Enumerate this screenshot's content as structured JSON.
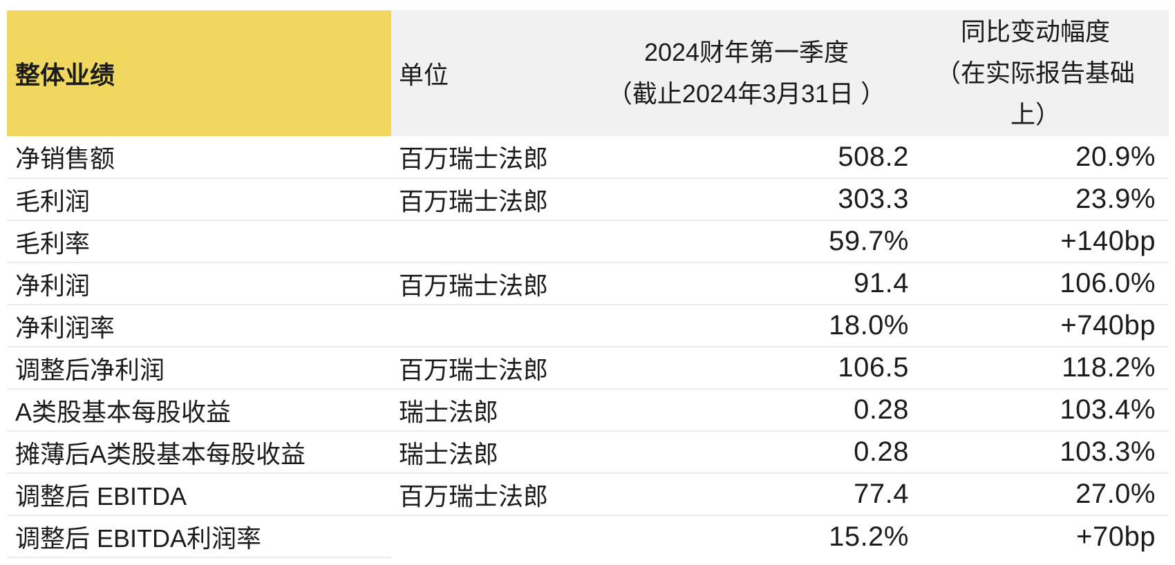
{
  "colors": {
    "accent": "#F0D75E",
    "header_bg": "#F1F1F1",
    "row_divider": "#ECECEC",
    "text": "#1B1B1B"
  },
  "table": {
    "header": {
      "col1": "整体业绩",
      "col2": "单位",
      "col3_lines": [
        "2024财年第一季度",
        "（截止2024年3月31日 ）"
      ],
      "col4_lines": [
        "同比变动幅度",
        "（在实际报告基础",
        "上）"
      ]
    },
    "rows": [
      {
        "metric": "净销售额",
        "unit": "百万瑞士法郎",
        "value": "508.2",
        "change": "20.9%"
      },
      {
        "metric": "毛利润",
        "unit": "百万瑞士法郎",
        "value": "303.3",
        "change": "23.9%"
      },
      {
        "metric": "毛利率",
        "unit": "",
        "value": "59.7%",
        "change": "+140bp"
      },
      {
        "metric": "净利润",
        "unit": "百万瑞士法郎",
        "value": "91.4",
        "change": "106.0%"
      },
      {
        "metric": "净利润率",
        "unit": "",
        "value": "18.0%",
        "change": "+740bp"
      },
      {
        "metric": "调整后净利润",
        "unit": "百万瑞士法郎",
        "value": "106.5",
        "change": "118.2%"
      },
      {
        "metric": "A类股基本每股收益",
        "unit": "瑞士法郎",
        "value": "0.28",
        "change": "103.4%"
      },
      {
        "metric": "摊薄后A类股基本每股收益",
        "unit": "瑞士法郎",
        "value": "0.28",
        "change": "103.3%"
      },
      {
        "metric": "调整后 EBITDA",
        "unit": "百万瑞士法郎",
        "value": "77.4",
        "change": "27.0%"
      },
      {
        "metric": "调整后 EBITDA利润率",
        "unit": "",
        "value": "15.2%",
        "change": "+70bp"
      }
    ]
  },
  "chart_data": {
    "type": "table",
    "title": "整体业绩",
    "columns": [
      "整体业绩",
      "单位",
      "2024财年第一季度（截止2024年3月31日 ）",
      "同比变动幅度（在实际报告基础上）"
    ],
    "rows": [
      [
        "净销售额",
        "百万瑞士法郎",
        "508.2",
        "20.9%"
      ],
      [
        "毛利润",
        "百万瑞士法郎",
        "303.3",
        "23.9%"
      ],
      [
        "毛利率",
        "",
        "59.7%",
        "+140bp"
      ],
      [
        "净利润",
        "百万瑞士法郎",
        "91.4",
        "106.0%"
      ],
      [
        "净利润率",
        "",
        "18.0%",
        "+740bp"
      ],
      [
        "调整后净利润",
        "百万瑞士法郎",
        "106.5",
        "118.2%"
      ],
      [
        "A类股基本每股收益",
        "瑞士法郎",
        "0.28",
        "103.4%"
      ],
      [
        "摊薄后A类股基本每股收益",
        "瑞士法郎",
        "0.28",
        "103.3%"
      ],
      [
        "调整后 EBITDA",
        "百万瑞士法郎",
        "77.4",
        "27.0%"
      ],
      [
        "调整后 EBITDA利润率",
        "",
        "15.2%",
        "+70bp"
      ]
    ],
    "layout": {
      "header_accent_column": 0,
      "value_alignment": "right",
      "grid": "horizontal-dividers"
    }
  }
}
